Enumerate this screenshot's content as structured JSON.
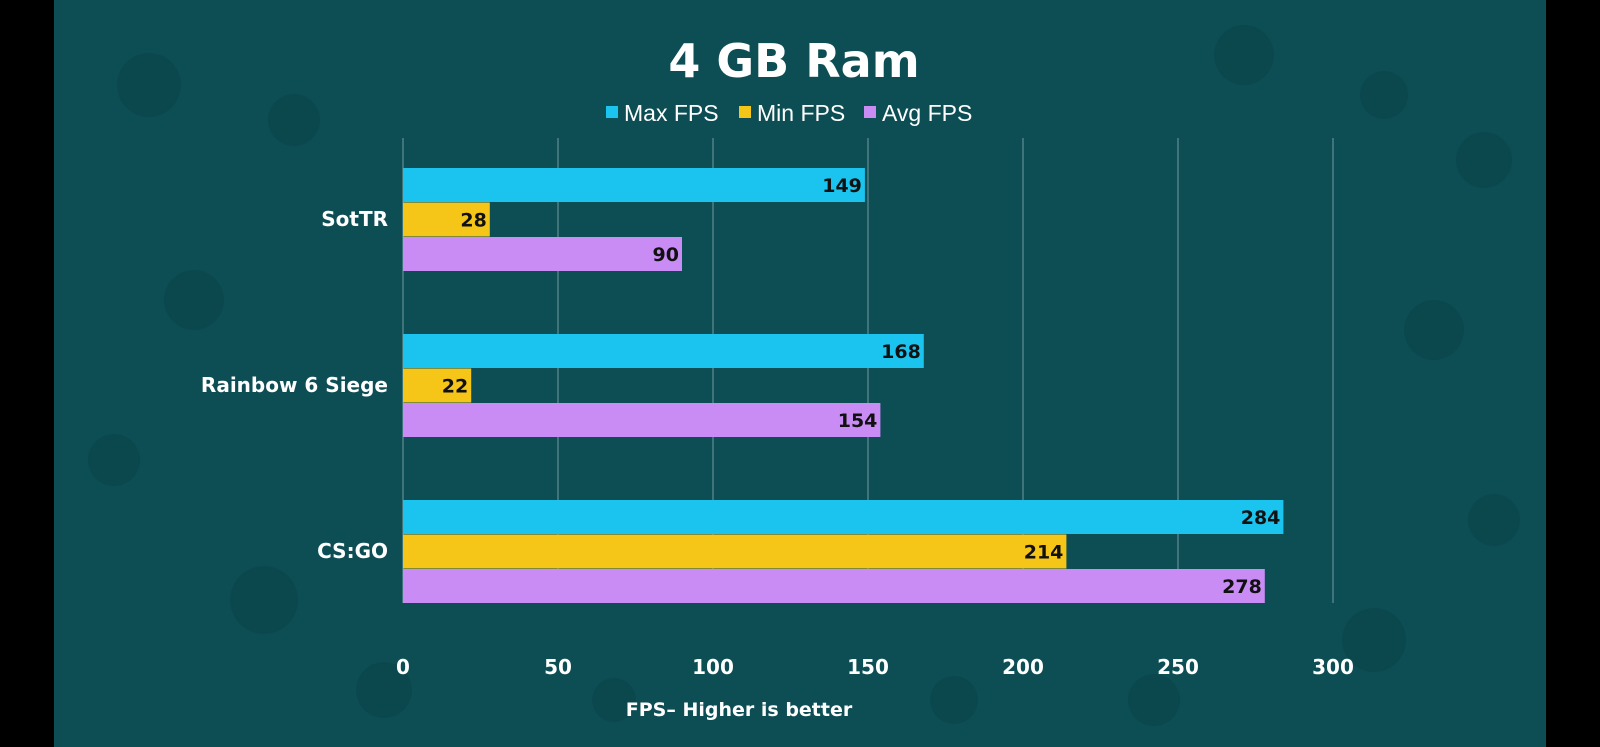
{
  "colors": {
    "background": "#0d4e55",
    "letterbox": "#000000",
    "grid": "#6f9aa0",
    "max_fps": "#1ac4ef",
    "min_fps": "#f5c518",
    "avg_fps": "#c98cf5"
  },
  "chart_data": {
    "type": "bar",
    "orientation": "horizontal",
    "title": "4 GB  Ram",
    "xlabel": "FPS– Higher is better",
    "ylabel": "",
    "xlim": [
      0,
      300
    ],
    "x_ticks": [
      "0",
      "50",
      "100",
      "150",
      "200",
      "250",
      "300"
    ],
    "grid": true,
    "legend_position": "top-center",
    "categories": [
      "SotTR",
      "Rainbow 6 Siege",
      "CS:GO"
    ],
    "series": [
      {
        "name": "Max FPS",
        "color": "#1ac4ef",
        "values": [
          149,
          168,
          284
        ]
      },
      {
        "name": "Min FPS",
        "color": "#f5c518",
        "values": [
          28,
          22,
          214
        ]
      },
      {
        "name": "Avg FPS",
        "color": "#c98cf5",
        "values": [
          90,
          154,
          278
        ]
      }
    ]
  }
}
